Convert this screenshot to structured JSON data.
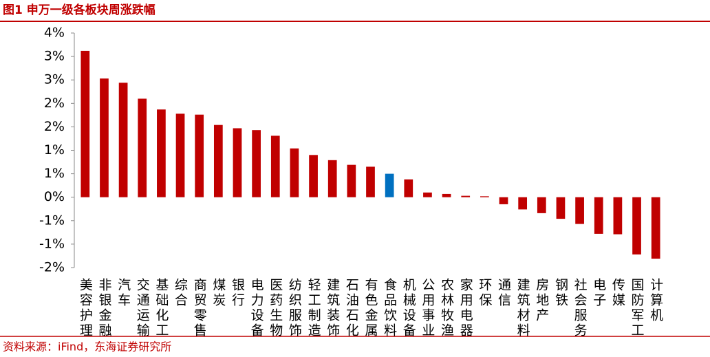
{
  "title": "图1 申万一级各板块周涨跌幅",
  "source": "资料来源：iFind，东海证券研究所",
  "chart_data": {
    "type": "bar",
    "categories": [
      "美容护理",
      "非银金融",
      "汽车",
      "交通运输",
      "基础化工",
      "综合",
      "商贸零售",
      "煤炭",
      "银行",
      "电力设备",
      "医药生物",
      "纺织服饰",
      "轻工制造",
      "建筑装饰",
      "石油石化",
      "有色金属",
      "食品饮料",
      "机械设备",
      "公用事业",
      "农林牧渔",
      "家用电器",
      "环保",
      "通信",
      "建筑材料",
      "房地产",
      "钢铁",
      "社会服务",
      "电子",
      "传媒",
      "国防军工",
      "计算机"
    ],
    "values": [
      3.12,
      2.53,
      2.44,
      2.1,
      1.87,
      1.78,
      1.76,
      1.54,
      1.47,
      1.43,
      1.31,
      1.04,
      0.9,
      0.79,
      0.69,
      0.65,
      0.5,
      0.38,
      0.1,
      0.07,
      0.03,
      0.02,
      -0.15,
      -0.26,
      -0.34,
      -0.46,
      -0.57,
      -0.78,
      -0.79,
      -1.22,
      -1.31
    ],
    "colors": [
      "#c00000",
      "#c00000",
      "#c00000",
      "#c00000",
      "#c00000",
      "#c00000",
      "#c00000",
      "#c00000",
      "#c00000",
      "#c00000",
      "#c00000",
      "#c00000",
      "#c00000",
      "#c00000",
      "#c00000",
      "#c00000",
      "#0070c0",
      "#c00000",
      "#c00000",
      "#c00000",
      "#c00000",
      "#c00000",
      "#c00000",
      "#c00000",
      "#c00000",
      "#c00000",
      "#c00000",
      "#c00000",
      "#c00000",
      "#c00000",
      "#c00000"
    ],
    "ylim": [
      -1.5,
      3.5
    ],
    "yticks": [
      {
        "value": 3.5,
        "label": "4%"
      },
      {
        "value": 3,
        "label": "3%"
      },
      {
        "value": 2.5,
        "label": "3%"
      },
      {
        "value": 2,
        "label": "2%"
      },
      {
        "value": 1.5,
        "label": "2%"
      },
      {
        "value": 1,
        "label": "1%"
      },
      {
        "value": 0.5,
        "label": "1%"
      },
      {
        "value": 0,
        "label": "0%"
      },
      {
        "value": -0.5,
        "label": "-1%"
      },
      {
        "value": -1,
        "label": "-1%"
      },
      {
        "value": -1.5,
        "label": "-2%"
      }
    ]
  }
}
